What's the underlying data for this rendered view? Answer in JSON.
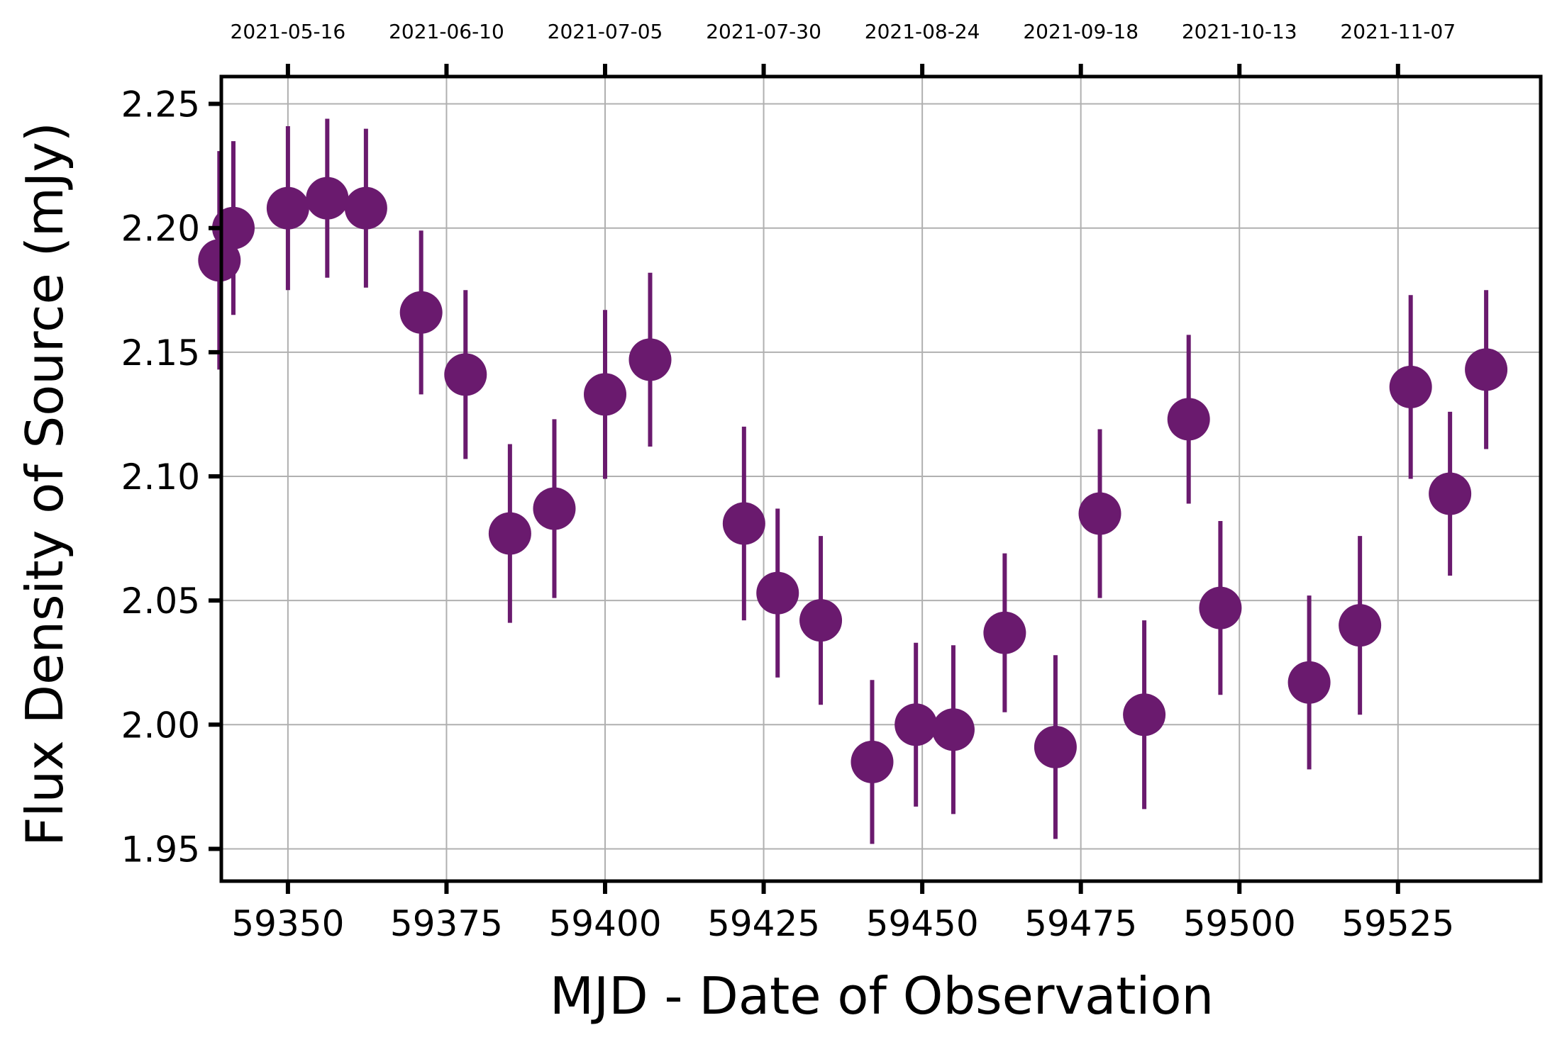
{
  "chart_data": {
    "type": "scatter",
    "title": "",
    "xlabel": "MJD - Date of Observation",
    "ylabel": "Flux Density of Source (mJy)",
    "xlim": [
      59339.5,
      59547.5
    ],
    "ylim": [
      1.937,
      2.261
    ],
    "grid": true,
    "marker_color": "#6a1a6e",
    "x_ticks": [
      59350,
      59375,
      59400,
      59425,
      59450,
      59475,
      59500,
      59525
    ],
    "x_tick_labels": [
      "59350",
      "59375",
      "59400",
      "59425",
      "59450",
      "59475",
      "59500",
      "59525"
    ],
    "y_ticks": [
      1.95,
      2.0,
      2.05,
      2.1,
      2.15,
      2.2,
      2.25
    ],
    "y_tick_labels": [
      "1.95",
      "2.00",
      "2.05",
      "2.10",
      "2.15",
      "2.20",
      "2.25"
    ],
    "top_ticks": [
      59350,
      59375,
      59400,
      59425,
      59450,
      59475,
      59500,
      59525
    ],
    "top_tick_labels": [
      "2021-05-16",
      "2021-06-10",
      "2021-07-05",
      "2021-07-30",
      "2021-08-24",
      "2021-09-18",
      "2021-10-13",
      "2021-11-07"
    ],
    "points": [
      {
        "x": 59339.2,
        "y": 2.187,
        "err": 0.044
      },
      {
        "x": 59341.4,
        "y": 2.2,
        "err": 0.035
      },
      {
        "x": 59350.0,
        "y": 2.208,
        "err": 0.033
      },
      {
        "x": 59356.2,
        "y": 2.212,
        "err": 0.032
      },
      {
        "x": 59362.3,
        "y": 2.208,
        "err": 0.032
      },
      {
        "x": 59371.0,
        "y": 2.166,
        "err": 0.033
      },
      {
        "x": 59378.0,
        "y": 2.141,
        "err": 0.034
      },
      {
        "x": 59385.0,
        "y": 2.077,
        "err": 0.036
      },
      {
        "x": 59392.0,
        "y": 2.087,
        "err": 0.036
      },
      {
        "x": 59400.0,
        "y": 2.133,
        "err": 0.034
      },
      {
        "x": 59407.1,
        "y": 2.147,
        "err": 0.035
      },
      {
        "x": 59421.9,
        "y": 2.081,
        "err": 0.039
      },
      {
        "x": 59427.2,
        "y": 2.053,
        "err": 0.034
      },
      {
        "x": 59434.0,
        "y": 2.042,
        "err": 0.034
      },
      {
        "x": 59442.1,
        "y": 1.985,
        "err": 0.033
      },
      {
        "x": 59449.0,
        "y": 2.0,
        "err": 0.033
      },
      {
        "x": 59454.9,
        "y": 1.998,
        "err": 0.034
      },
      {
        "x": 59463.0,
        "y": 2.037,
        "err": 0.032
      },
      {
        "x": 59471.0,
        "y": 1.991,
        "err": 0.037
      },
      {
        "x": 59478.0,
        "y": 2.085,
        "err": 0.034
      },
      {
        "x": 59485.0,
        "y": 2.004,
        "err": 0.038
      },
      {
        "x": 59492.0,
        "y": 2.123,
        "err": 0.034
      },
      {
        "x": 59497.0,
        "y": 2.047,
        "err": 0.035
      },
      {
        "x": 59511.0,
        "y": 2.017,
        "err": 0.035
      },
      {
        "x": 59519.0,
        "y": 2.04,
        "err": 0.036
      },
      {
        "x": 59527.0,
        "y": 2.136,
        "err": 0.037
      },
      {
        "x": 59533.2,
        "y": 2.093,
        "err": 0.033
      },
      {
        "x": 59538.9,
        "y": 2.143,
        "err": 0.032
      }
    ]
  }
}
